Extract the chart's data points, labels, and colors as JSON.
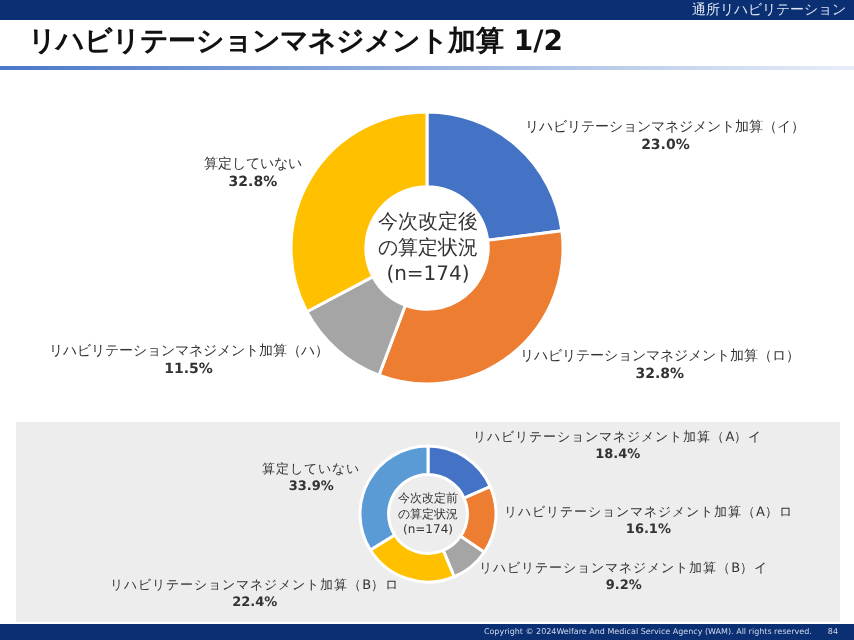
{
  "chart_data": [
    {
      "type": "donut",
      "title": "リハビリテーションマネジメント加算 1/2",
      "categories": [
        "リハビリテーションマネジメント加算（イ）",
        "リハビリテーションマネジメント加算（ロ）",
        "リハビリテーションマネジメント加算（ハ）",
        "算定していない"
      ],
      "values": [
        23.0,
        32.8,
        11.5,
        32.8
      ],
      "value_labels": [
        "23.0%",
        "32.8%",
        "11.5%",
        "32.8%"
      ],
      "colors": [
        "#4472c4",
        "#ed7d31",
        "#a5a5a5",
        "#ffc000"
      ],
      "legend": false,
      "annotations": [
        "今次改定後の算定状況",
        "(n=174)",
        "通所リハビリテーション"
      ]
    },
    {
      "type": "donut",
      "categories": [
        "リハビリテーションマネジメント加算（A）イ",
        "リハビリテーションマネジメント加算（A）ロ",
        "リハビリテーションマネジメント加算（B）イ",
        "リハビリテーションマネジメント加算（B）ロ",
        "算定していない"
      ],
      "values": [
        18.4,
        16.1,
        9.2,
        22.4,
        33.9
      ],
      "value_labels": [
        "18.4%",
        "16.1%",
        "9.2%",
        "22.4%",
        "33.9%"
      ],
      "colors": [
        "#4472c4",
        "#ed7d31",
        "#a5a5a5",
        "#ffc000",
        "#5b9bd5"
      ],
      "legend": false,
      "annotations": [
        "今次改定前の算定状況",
        "(n=174)",
        "Copyright © 2024Welfare And Medical Service Agency (WAM). All rights reserved.",
        "84"
      ]
    }
  ]
}
